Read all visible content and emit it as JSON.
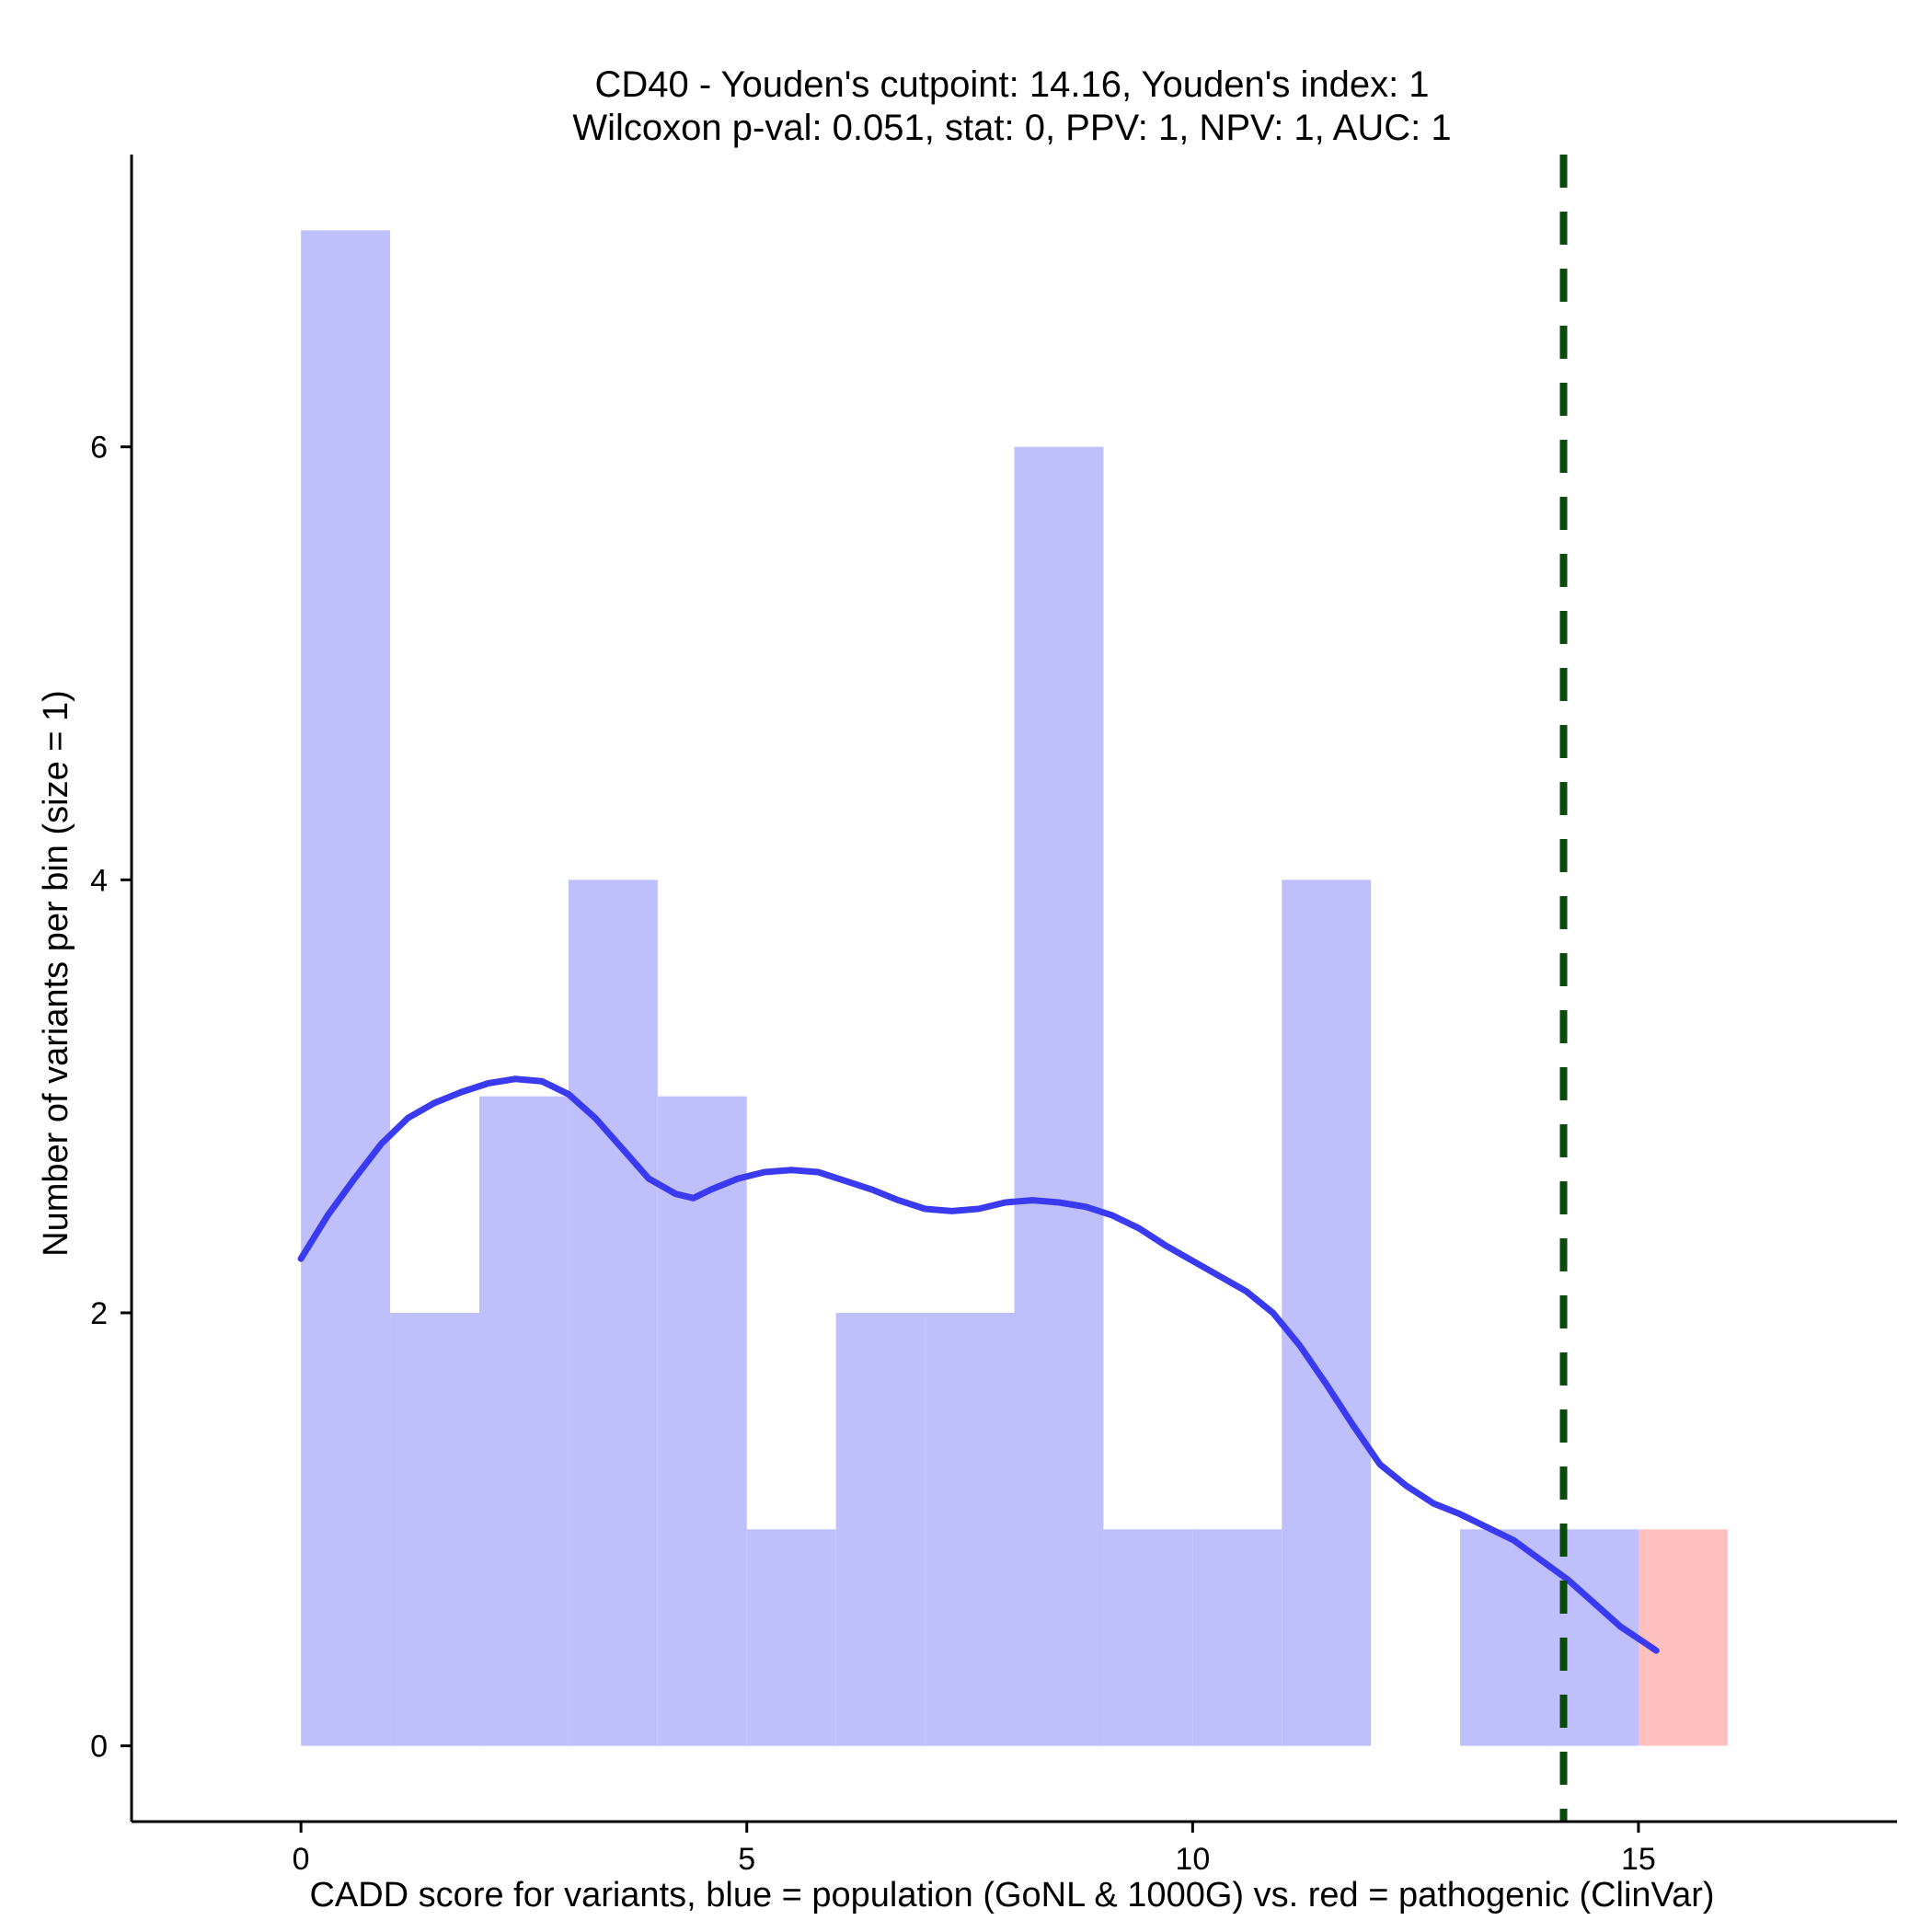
{
  "chart_data": {
    "type": "bar",
    "title": "CD40 - Youden's cutpoint: 14.16, Youden's index: 1",
    "subtitle": "Wilcoxon p-val: 0.051, stat: 0, PPV: 1, NPV: 1, AUC: 1",
    "xlabel": "CADD score for variants, blue = population (GoNL & 1000G) vs. red = pathogenic (ClinVar)",
    "ylabel": "Number of variants per bin (size = 1)",
    "xlim": [
      -1.9,
      17.9
    ],
    "ylim": [
      -0.35,
      7.35
    ],
    "x_ticks": [
      0,
      5,
      10,
      15
    ],
    "y_ticks": [
      0,
      2,
      4,
      6
    ],
    "bin_size": 1,
    "grid": false,
    "colors": {
      "population": "#bfbffc",
      "pathogenic": "#ffc0c0",
      "density_line": "#3a3af0",
      "cutpoint_line": "#0a4a0a",
      "axis": "#000000"
    },
    "series": [
      {
        "bins": [
          {
            "x0": 0,
            "x1": 1,
            "count": 7
          },
          {
            "x0": 1,
            "x1": 2,
            "count": 2
          },
          {
            "x0": 2,
            "x1": 3,
            "count": 3
          },
          {
            "x0": 3,
            "x1": 4,
            "count": 4
          },
          {
            "x0": 4,
            "x1": 5,
            "count": 3
          },
          {
            "x0": 5,
            "x1": 6,
            "count": 1
          },
          {
            "x0": 6,
            "x1": 7,
            "count": 2
          },
          {
            "x0": 7,
            "x1": 8,
            "count": 2
          },
          {
            "x0": 8,
            "x1": 9,
            "count": 6
          },
          {
            "x0": 9,
            "x1": 10,
            "count": 1
          },
          {
            "x0": 10,
            "x1": 11,
            "count": 1
          },
          {
            "x0": 11,
            "x1": 12,
            "count": 4
          },
          {
            "x0": 12,
            "x1": 13,
            "count": 0
          },
          {
            "x0": 13,
            "x1": 14,
            "count": 1
          },
          {
            "x0": 14,
            "x1": 15,
            "count": 1
          }
        ]
      },
      {
        "bins": [
          {
            "x0": 15,
            "x1": 16,
            "count": 1
          }
        ]
      }
    ],
    "density_curve": {
      "x": [
        0,
        0.3,
        0.6,
        0.9,
        1.2,
        1.5,
        1.8,
        2.1,
        2.4,
        2.7,
        3.0,
        3.3,
        3.6,
        3.9,
        4.2,
        4.4,
        4.6,
        4.9,
        5.2,
        5.5,
        5.8,
        6.1,
        6.4,
        6.7,
        7.0,
        7.3,
        7.6,
        7.9,
        8.2,
        8.5,
        8.8,
        9.1,
        9.4,
        9.7,
        10.0,
        10.3,
        10.6,
        10.9,
        11.2,
        11.5,
        11.8,
        12.1,
        12.4,
        12.7,
        13.0,
        13.3,
        13.6,
        13.9,
        14.2,
        14.5,
        14.8,
        15.2
      ],
      "y": [
        2.25,
        2.45,
        2.62,
        2.78,
        2.9,
        2.97,
        3.02,
        3.06,
        3.08,
        3.07,
        3.01,
        2.9,
        2.76,
        2.62,
        2.55,
        2.53,
        2.57,
        2.62,
        2.65,
        2.66,
        2.65,
        2.61,
        2.57,
        2.52,
        2.48,
        2.47,
        2.48,
        2.51,
        2.52,
        2.51,
        2.49,
        2.45,
        2.39,
        2.31,
        2.24,
        2.17,
        2.1,
        2.0,
        1.85,
        1.67,
        1.48,
        1.3,
        1.2,
        1.12,
        1.07,
        1.01,
        0.95,
        0.86,
        0.77,
        0.66,
        0.55,
        0.44
      ]
    },
    "cutpoint": 14.16
  }
}
